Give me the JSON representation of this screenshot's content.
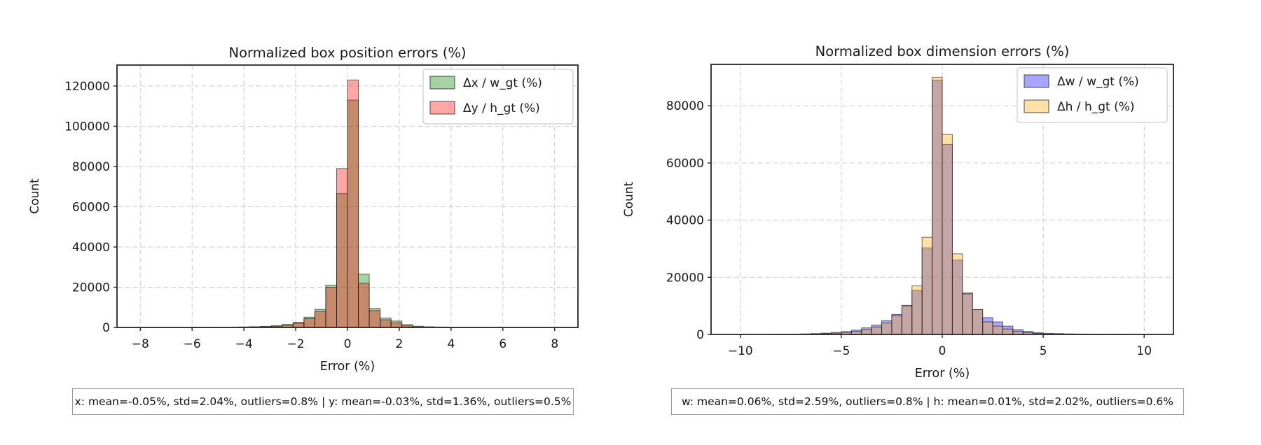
{
  "page": {
    "background": "#ffffff"
  },
  "chart_data": [
    {
      "type": "histogram",
      "title": "Normalized box position errors (%)",
      "xlabel": "Error (%)",
      "ylabel": "Count",
      "stats_caption": "x: mean=-0.05%, std=2.04%, outliers=0.8% | y: mean=-0.03%, std=1.36%, outliers=0.5%",
      "xlim": [
        -8.9,
        8.9
      ],
      "ylim": [
        0,
        130400
      ],
      "grid": true,
      "legend_position": "top-right",
      "x_ticks": [
        {
          "v": -8,
          "label": "−8"
        },
        {
          "v": -6,
          "label": "−6"
        },
        {
          "v": -4,
          "label": "−4"
        },
        {
          "v": -2,
          "label": "−2"
        },
        {
          "v": 0,
          "label": "0"
        },
        {
          "v": 2,
          "label": "2"
        },
        {
          "v": 4,
          "label": "4"
        },
        {
          "v": 6,
          "label": "6"
        },
        {
          "v": 8,
          "label": "8"
        }
      ],
      "y_ticks": [
        {
          "v": 0,
          "label": "0"
        },
        {
          "v": 20000,
          "label": "20000"
        },
        {
          "v": 40000,
          "label": "40000"
        },
        {
          "v": 60000,
          "label": "60000"
        },
        {
          "v": 80000,
          "label": "80000"
        },
        {
          "v": 100000,
          "label": "100000"
        },
        {
          "v": 120000,
          "label": "120000"
        }
      ],
      "bins": {
        "start": -8.4,
        "width": 0.42
      },
      "series": [
        {
          "name": "Δx / w_gt (%)",
          "color": "#008000",
          "fill_alpha": 0.35,
          "counts": [
            0,
            0,
            15,
            20,
            30,
            45,
            65,
            90,
            130,
            180,
            260,
            380,
            550,
            900,
            1500,
            2600,
            5100,
            9000,
            21000,
            66500,
            113000,
            26500,
            9500,
            4700,
            3200,
            1400,
            600,
            350,
            220,
            150,
            100,
            70,
            50,
            35,
            25,
            18,
            12,
            0,
            0,
            0
          ]
        },
        {
          "name": "Δy / h_gt (%)",
          "color": "#ff0000",
          "fill_alpha": 0.35,
          "counts": [
            0,
            0,
            5,
            8,
            12,
            18,
            25,
            40,
            60,
            90,
            140,
            210,
            330,
            550,
            1100,
            2100,
            4400,
            8000,
            20000,
            79000,
            123000,
            22000,
            8400,
            3800,
            2300,
            800,
            300,
            150,
            90,
            60,
            40,
            25,
            15,
            10,
            6,
            4,
            3,
            0,
            0,
            0
          ]
        }
      ]
    },
    {
      "type": "histogram",
      "title": "Normalized box dimension errors (%)",
      "xlabel": "Error (%)",
      "ylabel": "Count",
      "stats_caption": "w: mean=0.06%, std=2.59%, outliers=0.8% | h: mean=0.01%, std=2.02%, outliers=0.6%",
      "xlim": [
        -11.45,
        11.45
      ],
      "ylim": [
        0,
        94500
      ],
      "grid": true,
      "legend_position": "top-right",
      "x_ticks": [
        {
          "v": -10,
          "label": "−10"
        },
        {
          "v": -5,
          "label": "−5"
        },
        {
          "v": 0,
          "label": "0"
        },
        {
          "v": 5,
          "label": "5"
        },
        {
          "v": 10,
          "label": "10"
        }
      ],
      "y_ticks": [
        {
          "v": 0,
          "label": "0"
        },
        {
          "v": 20000,
          "label": "20000"
        },
        {
          "v": 40000,
          "label": "40000"
        },
        {
          "v": 60000,
          "label": "60000"
        },
        {
          "v": 80000,
          "label": "80000"
        }
      ],
      "bins": {
        "start": -11.0,
        "width": 0.5
      },
      "series": [
        {
          "name": "Δw / w_gt (%)",
          "color": "#0000ff",
          "fill_alpha": 0.35,
          "counts": [
            0,
            0,
            0,
            0,
            0,
            30,
            80,
            130,
            200,
            300,
            450,
            700,
            1000,
            1500,
            2300,
            3300,
            4800,
            7000,
            10200,
            15400,
            30300,
            89000,
            66500,
            26000,
            14500,
            8700,
            5900,
            4400,
            2900,
            1700,
            1050,
            600,
            400,
            300,
            200,
            150,
            110,
            80,
            60,
            40,
            25,
            0,
            0,
            0
          ]
        },
        {
          "name": "Δh / h_gt (%)",
          "color": "#ffa500",
          "fill_alpha": 0.35,
          "counts": [
            0,
            0,
            0,
            0,
            0,
            15,
            40,
            70,
            110,
            180,
            280,
            450,
            700,
            1100,
            1700,
            2600,
            4000,
            6600,
            10000,
            17000,
            34000,
            90000,
            70000,
            28200,
            14200,
            8700,
            4400,
            2900,
            1900,
            1100,
            650,
            350,
            200,
            130,
            90,
            60,
            40,
            25,
            15,
            10,
            5,
            0,
            0,
            0
          ]
        }
      ],
      "style_note": "overlapping translucent histograms, dashed grid, black bar edges"
    }
  ]
}
